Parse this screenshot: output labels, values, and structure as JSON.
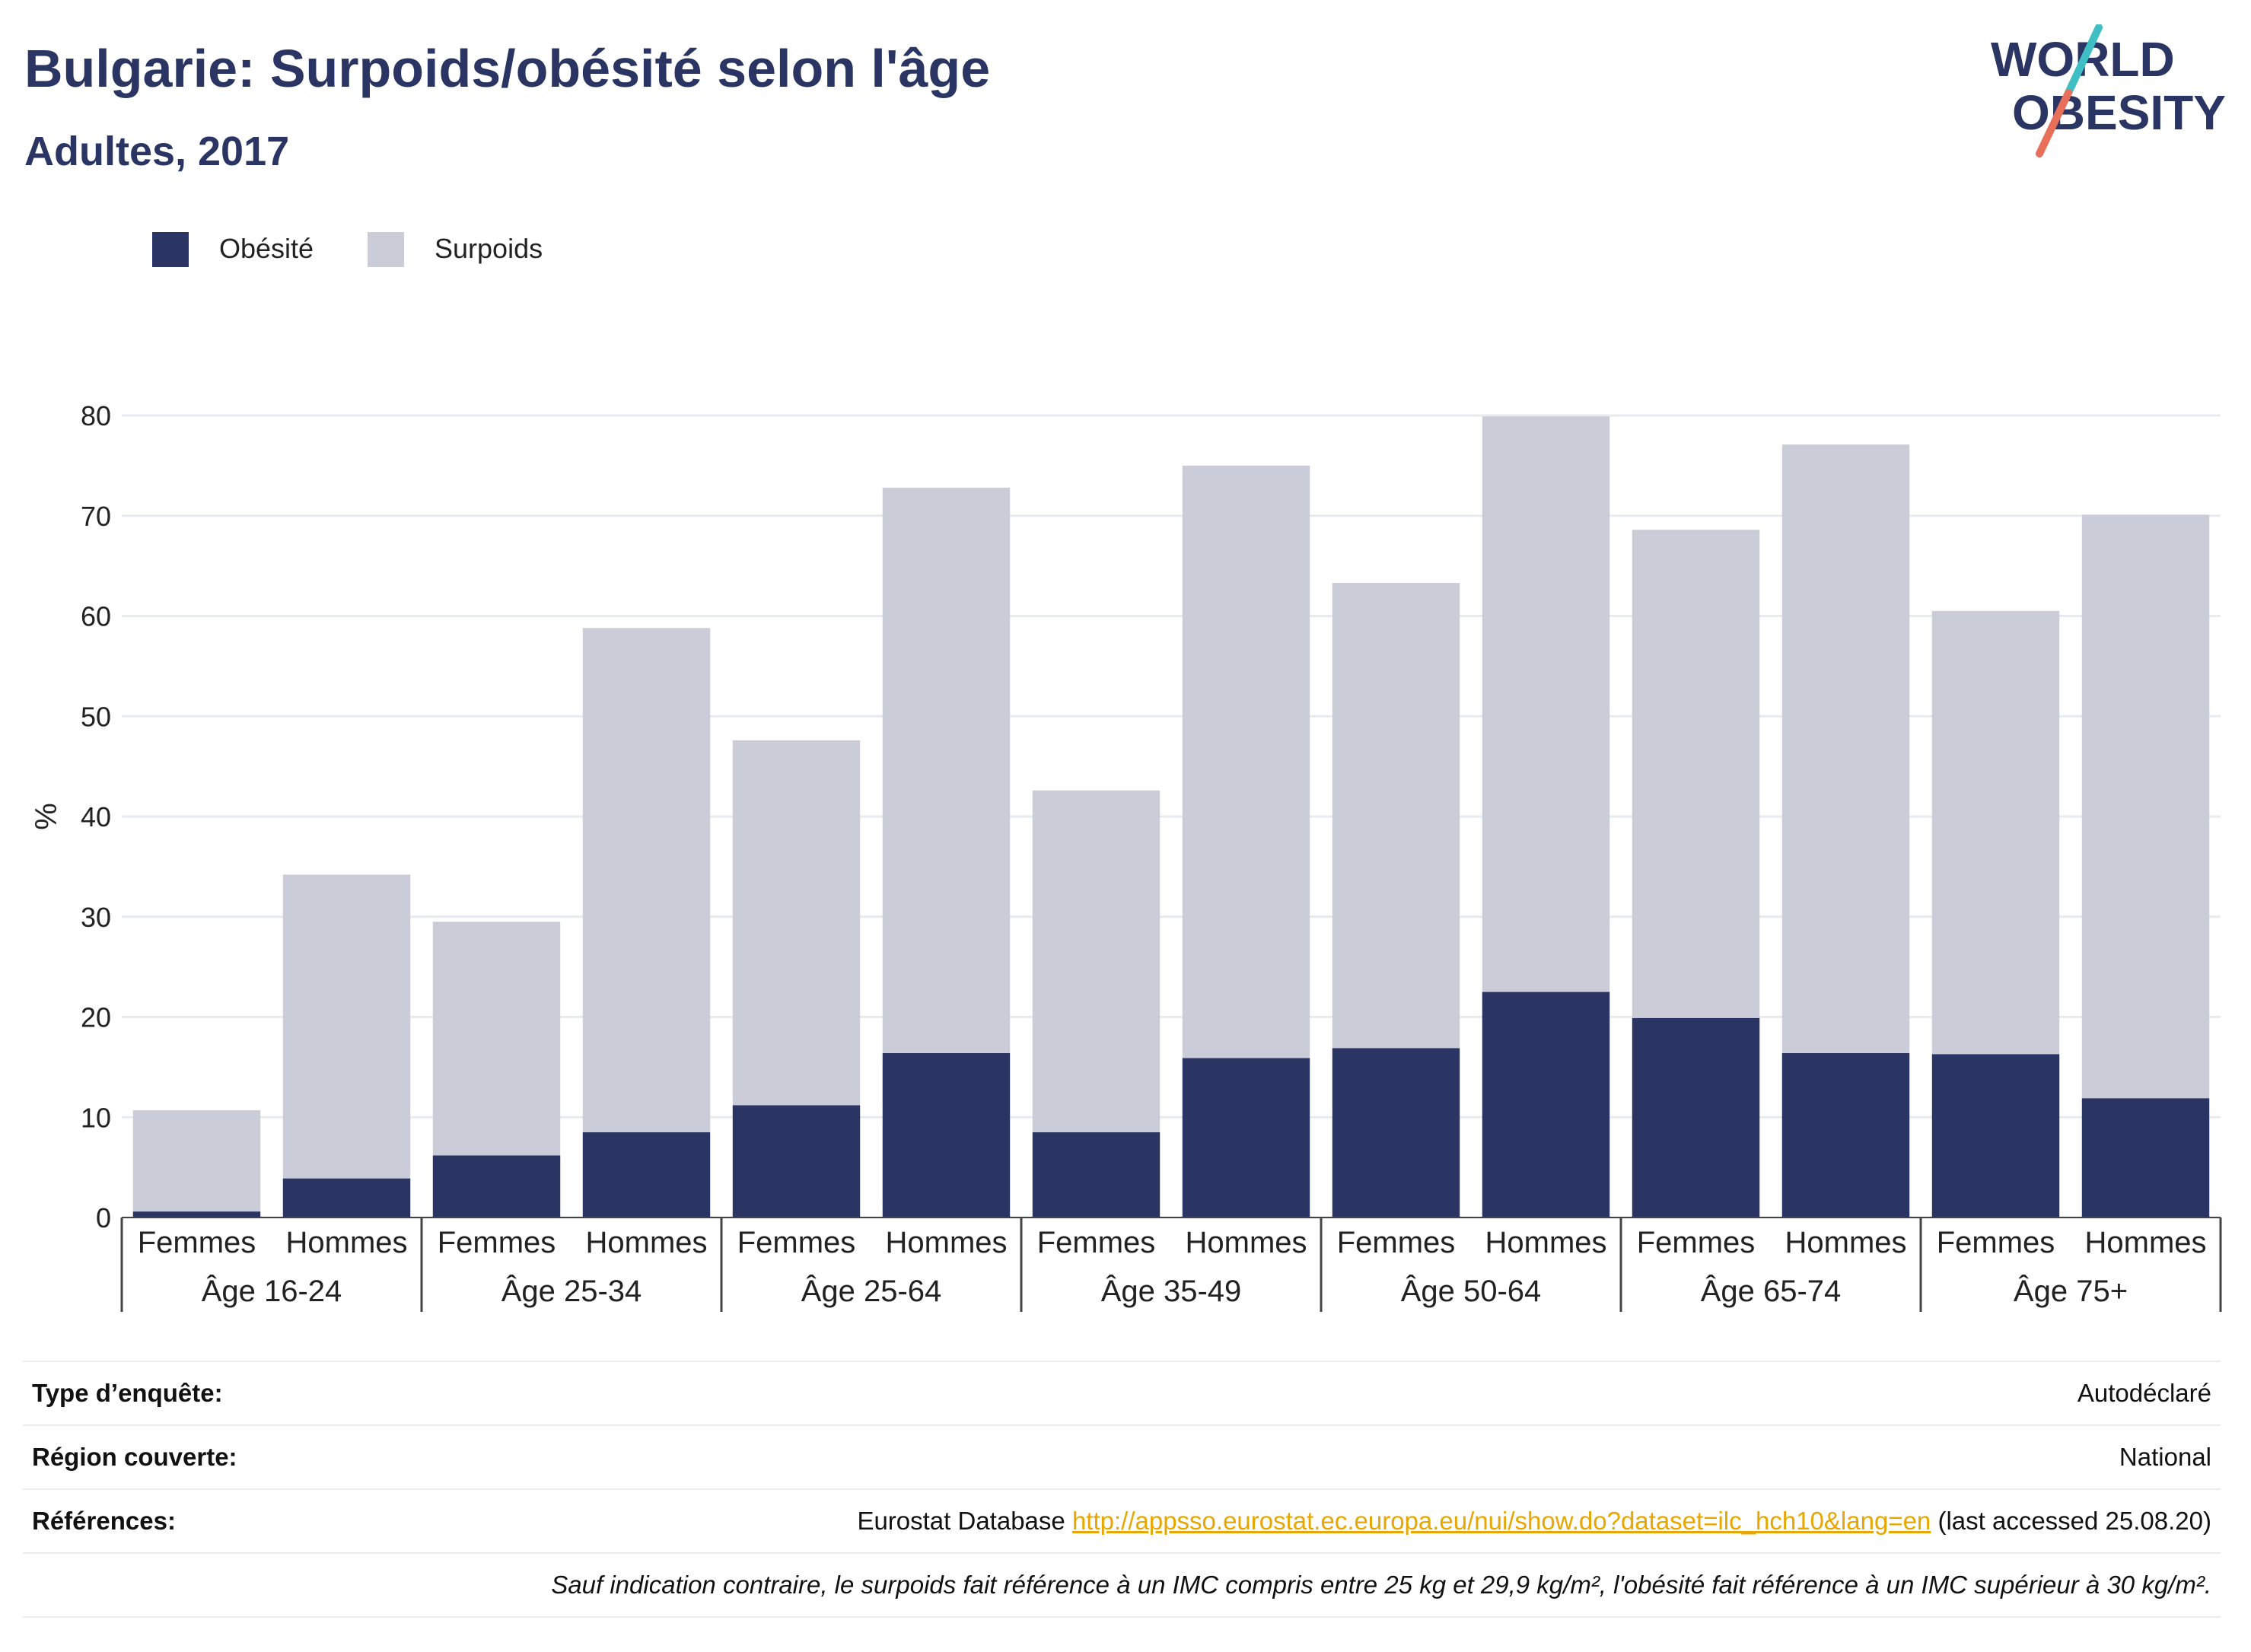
{
  "header": {
    "title": "Bulgarie: Surpoids/obésité selon l'âge",
    "subtitle": "Adultes, 2017"
  },
  "logo": {
    "line1": "WORLD",
    "line2": "OBESITY",
    "colors": {
      "text": "#2a3564",
      "slash_top": "#3fbfc4",
      "slash_bottom": "#e8705a"
    }
  },
  "chart_data": {
    "type": "bar",
    "stacked": true,
    "ylabel": "%",
    "ylim": [
      0,
      80
    ],
    "yticks": [
      0,
      10,
      20,
      30,
      40,
      50,
      60,
      70,
      80
    ],
    "grid": true,
    "legend_position": "top-left",
    "sub_categories": [
      "Femmes",
      "Hommes"
    ],
    "groups": [
      "Âge 16-24",
      "Âge 25-34",
      "Âge 25-64",
      "Âge 35-49",
      "Âge 50-64",
      "Âge 65-74",
      "Âge 75+"
    ],
    "categories": [
      "Femmes",
      "Hommes",
      "Femmes",
      "Hommes",
      "Femmes",
      "Hommes",
      "Femmes",
      "Hommes",
      "Femmes",
      "Hommes",
      "Femmes",
      "Hommes",
      "Femmes",
      "Hommes"
    ],
    "series": [
      {
        "name": "Obésité",
        "color": "#2a3564",
        "values": [
          0.6,
          3.9,
          6.2,
          8.5,
          11.2,
          16.4,
          8.5,
          15.9,
          16.9,
          22.5,
          19.9,
          16.4,
          16.3,
          11.9
        ]
      },
      {
        "name": "Surpoids",
        "color": "#cacdd8",
        "values": [
          10.1,
          30.3,
          23.3,
          50.3,
          36.4,
          56.4,
          34.1,
          59.1,
          46.4,
          57.4,
          48.7,
          60.7,
          44.2,
          58.2
        ]
      }
    ]
  },
  "info_table": {
    "survey_type_label": "Type d’enquête:",
    "survey_type_value": "Autodéclaré",
    "region_label": "Région couverte:",
    "region_value": "National",
    "references_label": "Références:",
    "references_prefix": "Eurostat Database ",
    "references_link": "http://appsso.eurostat.ec.europa.eu/nui/show.do?dataset=ilc_hch10&lang=en",
    "references_suffix": " (last accessed 25.08.20)",
    "footnote": "Sauf indication contraire, le surpoids fait référence à un IMC compris entre 25 kg et 29,9 kg/m², l'obésité fait référence à un IMC supérieur à 30 kg/m²."
  }
}
